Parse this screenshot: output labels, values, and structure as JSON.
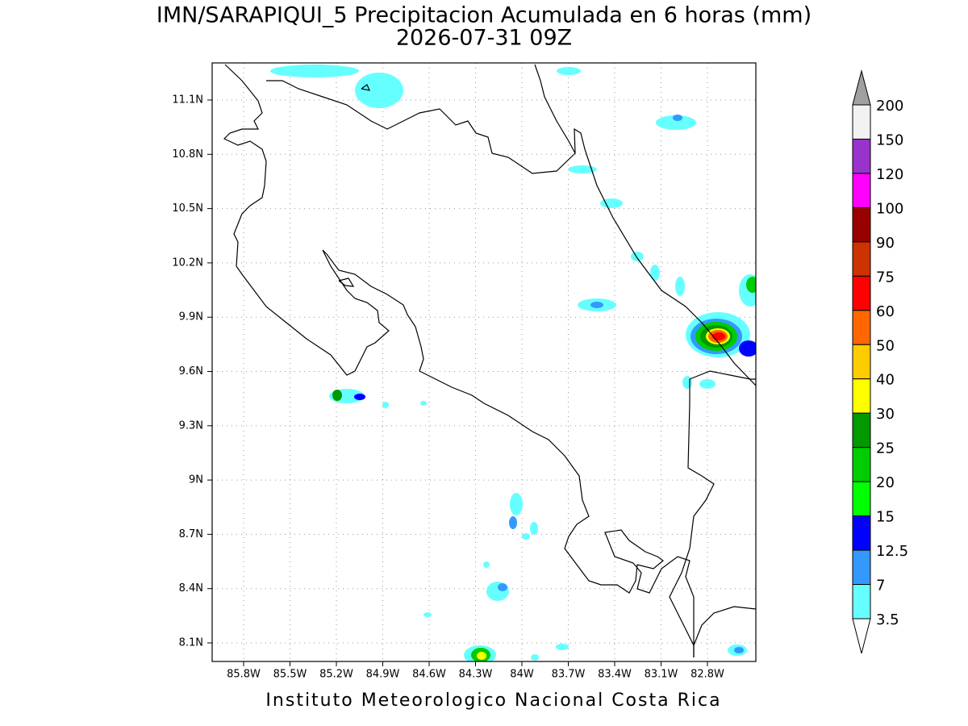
{
  "title": "IMN/SARAPIQUI_5 Precipitacion Acumulada en 6 horas (mm)",
  "subtitle": "2026-07-31 09Z",
  "map": {
    "lon_ticks": [
      "85.8W",
      "85.5W",
      "85.2W",
      "84.9W",
      "84.6W",
      "84.3W",
      "84W",
      "83.7W",
      "83.4W",
      "83.1W",
      "82.8W"
    ],
    "lat_ticks": [
      "11.1N",
      "10.8N",
      "10.5N",
      "10.2N",
      "9.9N",
      "9.6N",
      "9.3N",
      "9N",
      "8.7N",
      "8.4N",
      "8.1N"
    ]
  },
  "colorbar": {
    "labels": [
      200,
      150,
      120,
      100,
      90,
      75,
      60,
      50,
      40,
      30,
      25,
      20,
      15,
      12.5,
      7,
      3.5
    ],
    "colors": [
      "#f2f2f2",
      "#9933cc",
      "#ff00ff",
      "#990000",
      "#cc3300",
      "#ff0000",
      "#ff6600",
      "#ffcc00",
      "#ffff00",
      "#009900",
      "#00cc00",
      "#00ff00",
      "#0000ff",
      "#3399ff",
      "#66ffff"
    ]
  },
  "footer": "Instituto Meteorologico Nacional Costa Rica"
}
